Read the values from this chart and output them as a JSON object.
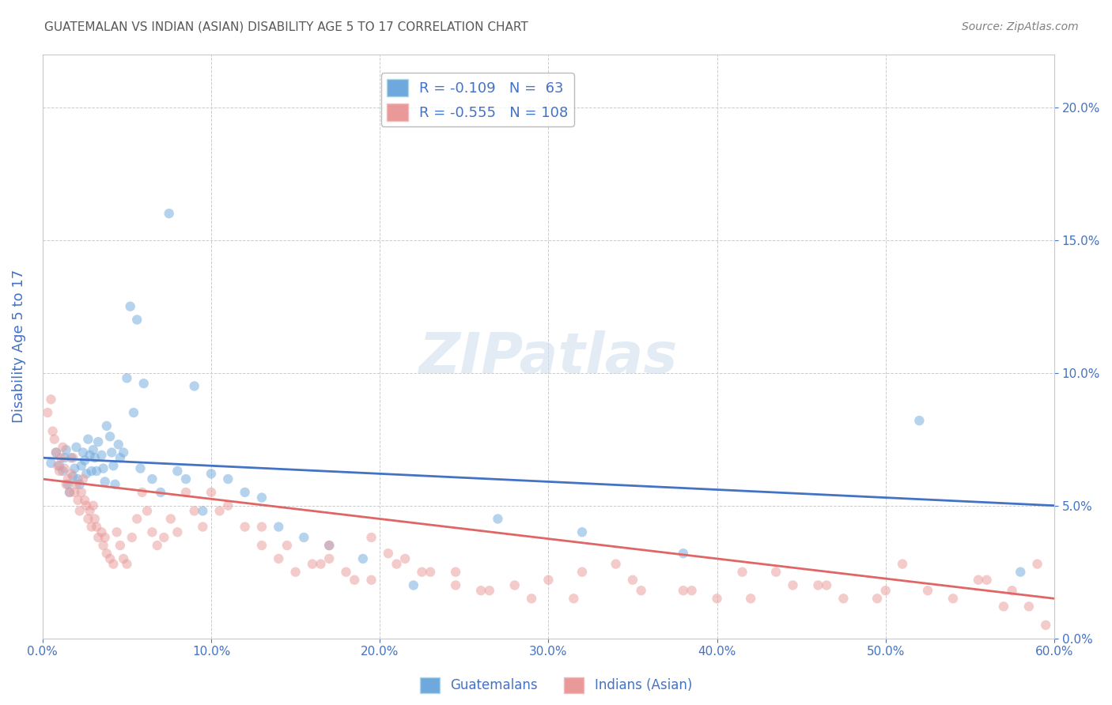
{
  "title": "GUATEMALAN VS INDIAN (ASIAN) DISABILITY AGE 5 TO 17 CORRELATION CHART",
  "source": "Source: ZipAtlas.com",
  "ylabel": "Disability Age 5 to 17",
  "xlabel_ticks": [
    "0.0%",
    "10.0%",
    "20.0%",
    "30.0%",
    "40.0%",
    "50.0%",
    "60.0%"
  ],
  "ylabel_ticks": [
    "0.0%",
    "5.0%",
    "10.0%",
    "15.0%",
    "20.0%"
  ],
  "xlim": [
    0.0,
    0.6
  ],
  "ylim": [
    0.0,
    0.22
  ],
  "blue_color": "#6fa8dc",
  "pink_color": "#ea9999",
  "blue_line_color": "#4472c4",
  "pink_line_color": "#e06666",
  "legend_blue_label": "R = -0.109   N =  63",
  "legend_pink_label": "R = -0.555   N = 108",
  "legend_blue_text": "Guatemalans",
  "legend_pink_text": "Indians (Asian)",
  "title_color": "#595959",
  "source_color": "#808080",
  "axis_label_color": "#4472c4",
  "tick_color": "#4472c4",
  "blue_R": -0.109,
  "blue_N": 63,
  "pink_R": -0.555,
  "pink_N": 108,
  "blue_scatter_x": [
    0.005,
    0.008,
    0.01,
    0.012,
    0.013,
    0.014,
    0.015,
    0.016,
    0.017,
    0.018,
    0.019,
    0.02,
    0.021,
    0.022,
    0.023,
    0.024,
    0.025,
    0.026,
    0.027,
    0.028,
    0.029,
    0.03,
    0.031,
    0.032,
    0.033,
    0.035,
    0.036,
    0.037,
    0.038,
    0.04,
    0.041,
    0.042,
    0.043,
    0.045,
    0.046,
    0.048,
    0.05,
    0.052,
    0.054,
    0.056,
    0.058,
    0.06,
    0.065,
    0.07,
    0.075,
    0.08,
    0.085,
    0.09,
    0.095,
    0.1,
    0.11,
    0.12,
    0.13,
    0.14,
    0.155,
    0.17,
    0.19,
    0.22,
    0.27,
    0.32,
    0.38,
    0.52,
    0.58
  ],
  "blue_scatter_y": [
    0.066,
    0.07,
    0.065,
    0.063,
    0.068,
    0.071,
    0.058,
    0.055,
    0.068,
    0.061,
    0.064,
    0.072,
    0.06,
    0.058,
    0.065,
    0.07,
    0.067,
    0.062,
    0.075,
    0.069,
    0.063,
    0.071,
    0.068,
    0.063,
    0.074,
    0.069,
    0.064,
    0.059,
    0.08,
    0.076,
    0.07,
    0.065,
    0.058,
    0.073,
    0.068,
    0.07,
    0.098,
    0.125,
    0.085,
    0.12,
    0.064,
    0.096,
    0.06,
    0.055,
    0.16,
    0.063,
    0.06,
    0.095,
    0.048,
    0.062,
    0.06,
    0.055,
    0.053,
    0.042,
    0.038,
    0.035,
    0.03,
    0.02,
    0.045,
    0.04,
    0.032,
    0.082,
    0.025
  ],
  "pink_scatter_x": [
    0.003,
    0.005,
    0.006,
    0.007,
    0.008,
    0.009,
    0.01,
    0.011,
    0.012,
    0.013,
    0.014,
    0.015,
    0.016,
    0.017,
    0.018,
    0.019,
    0.02,
    0.021,
    0.022,
    0.023,
    0.024,
    0.025,
    0.026,
    0.027,
    0.028,
    0.029,
    0.03,
    0.031,
    0.032,
    0.033,
    0.035,
    0.036,
    0.037,
    0.038,
    0.04,
    0.042,
    0.044,
    0.046,
    0.048,
    0.05,
    0.053,
    0.056,
    0.059,
    0.062,
    0.065,
    0.068,
    0.072,
    0.076,
    0.08,
    0.085,
    0.09,
    0.095,
    0.1,
    0.105,
    0.11,
    0.12,
    0.13,
    0.14,
    0.15,
    0.16,
    0.17,
    0.18,
    0.195,
    0.21,
    0.225,
    0.245,
    0.265,
    0.29,
    0.32,
    0.35,
    0.385,
    0.42,
    0.46,
    0.5,
    0.54,
    0.57,
    0.59,
    0.595,
    0.13,
    0.145,
    0.165,
    0.185,
    0.205,
    0.23,
    0.26,
    0.3,
    0.34,
    0.38,
    0.415,
    0.445,
    0.475,
    0.51,
    0.555,
    0.575,
    0.585,
    0.17,
    0.195,
    0.215,
    0.245,
    0.28,
    0.315,
    0.355,
    0.4,
    0.435,
    0.465,
    0.495,
    0.525,
    0.56
  ],
  "pink_scatter_y": [
    0.085,
    0.09,
    0.078,
    0.075,
    0.07,
    0.065,
    0.063,
    0.068,
    0.072,
    0.064,
    0.058,
    0.06,
    0.055,
    0.062,
    0.068,
    0.055,
    0.058,
    0.052,
    0.048,
    0.055,
    0.06,
    0.052,
    0.05,
    0.045,
    0.048,
    0.042,
    0.05,
    0.045,
    0.042,
    0.038,
    0.04,
    0.035,
    0.038,
    0.032,
    0.03,
    0.028,
    0.04,
    0.035,
    0.03,
    0.028,
    0.038,
    0.045,
    0.055,
    0.048,
    0.04,
    0.035,
    0.038,
    0.045,
    0.04,
    0.055,
    0.048,
    0.042,
    0.055,
    0.048,
    0.05,
    0.042,
    0.035,
    0.03,
    0.025,
    0.028,
    0.03,
    0.025,
    0.022,
    0.028,
    0.025,
    0.02,
    0.018,
    0.015,
    0.025,
    0.022,
    0.018,
    0.015,
    0.02,
    0.018,
    0.015,
    0.012,
    0.028,
    0.005,
    0.042,
    0.035,
    0.028,
    0.022,
    0.032,
    0.025,
    0.018,
    0.022,
    0.028,
    0.018,
    0.025,
    0.02,
    0.015,
    0.028,
    0.022,
    0.018,
    0.012,
    0.035,
    0.038,
    0.03,
    0.025,
    0.02,
    0.015,
    0.018,
    0.015,
    0.025,
    0.02,
    0.015,
    0.018,
    0.022
  ],
  "blue_trend_x": [
    0.0,
    0.6
  ],
  "blue_trend_y": [
    0.068,
    0.05
  ],
  "pink_trend_x": [
    0.0,
    0.6
  ],
  "pink_trend_y": [
    0.06,
    0.015
  ],
  "watermark": "ZIPatlas",
  "background_color": "#ffffff",
  "grid_color": "#cccccc",
  "marker_size": 80,
  "marker_alpha": 0.5,
  "legend_text_color": "#4472c4"
}
